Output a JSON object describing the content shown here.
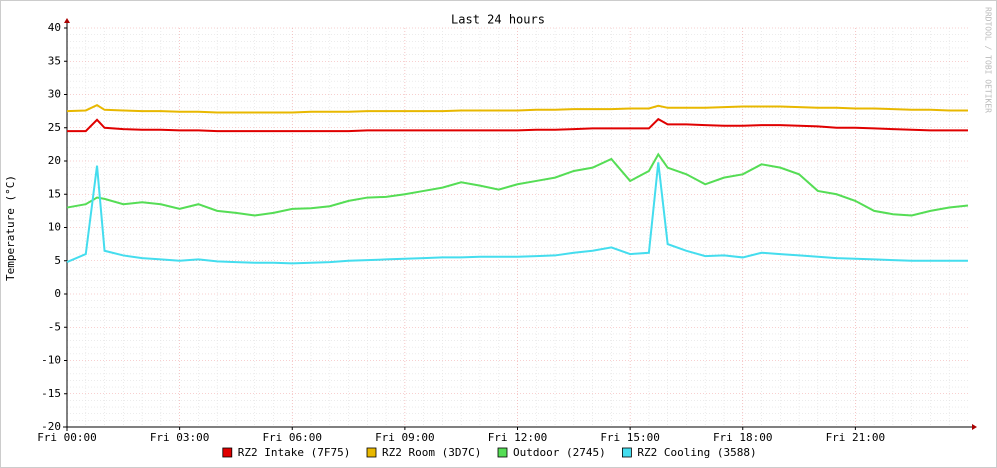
{
  "chart_data": {
    "type": "line",
    "title": "Last 24 hours",
    "y_label": "Temperature (°C)",
    "watermark": "RRDTOOL / TOBI OETIKER",
    "x": [
      0,
      0.5,
      0.8,
      1,
      1.5,
      2,
      2.5,
      3,
      3.5,
      4,
      4.5,
      5,
      5.5,
      6,
      6.5,
      7,
      7.5,
      8,
      8.5,
      9,
      9.5,
      10,
      10.5,
      11,
      11.5,
      12,
      12.5,
      13,
      13.5,
      14,
      14.5,
      15,
      15.5,
      15.75,
      16,
      16.5,
      17,
      17.5,
      18,
      18.5,
      19,
      19.5,
      20,
      20.5,
      21,
      21.5,
      22,
      22.5,
      23,
      23.5,
      24
    ],
    "xlim": [
      0,
      24
    ],
    "xticks": [
      {
        "value": 0,
        "label": "Fri 00:00"
      },
      {
        "value": 3,
        "label": "Fri 03:00"
      },
      {
        "value": 6,
        "label": "Fri 06:00"
      },
      {
        "value": 9,
        "label": "Fri 09:00"
      },
      {
        "value": 12,
        "label": "Fri 12:00"
      },
      {
        "value": 15,
        "label": "Fri 15:00"
      },
      {
        "value": 18,
        "label": "Fri 18:00"
      },
      {
        "value": 21,
        "label": "Fri 21:00"
      }
    ],
    "ylim": [
      -20,
      40
    ],
    "yticks": [
      -20,
      -15,
      -10,
      -5,
      0,
      5,
      10,
      15,
      20,
      25,
      30,
      35,
      40
    ],
    "grid": true,
    "series": [
      {
        "name": "RZ2 Intake (7F75)",
        "color": "#e00000",
        "values": [
          24.5,
          24.5,
          26.2,
          25,
          24.8,
          24.7,
          24.7,
          24.6,
          24.6,
          24.5,
          24.5,
          24.5,
          24.5,
          24.5,
          24.5,
          24.5,
          24.5,
          24.6,
          24.6,
          24.6,
          24.6,
          24.6,
          24.6,
          24.6,
          24.6,
          24.6,
          24.7,
          24.7,
          24.8,
          24.9,
          24.9,
          24.9,
          24.9,
          26.3,
          25.5,
          25.5,
          25.4,
          25.3,
          25.3,
          25.4,
          25.4,
          25.3,
          25.2,
          25,
          25,
          24.9,
          24.8,
          24.7,
          24.6,
          24.6,
          24.6
        ]
      },
      {
        "name": "RZ2 Room (3D7C)",
        "color": "#e8b800",
        "values": [
          27.5,
          27.6,
          28.4,
          27.7,
          27.6,
          27.5,
          27.5,
          27.4,
          27.4,
          27.3,
          27.3,
          27.3,
          27.3,
          27.3,
          27.4,
          27.4,
          27.4,
          27.5,
          27.5,
          27.5,
          27.5,
          27.5,
          27.6,
          27.6,
          27.6,
          27.6,
          27.7,
          27.7,
          27.8,
          27.8,
          27.8,
          27.9,
          27.9,
          28.3,
          28,
          28,
          28,
          28.1,
          28.2,
          28.2,
          28.2,
          28.1,
          28,
          28,
          27.9,
          27.9,
          27.8,
          27.7,
          27.7,
          27.6,
          27.6
        ]
      },
      {
        "name": "Outdoor (2745)",
        "color": "#55dd55",
        "values": [
          13,
          13.5,
          14.5,
          14.3,
          13.5,
          13.8,
          13.5,
          12.8,
          13.5,
          12.5,
          12.2,
          11.8,
          12.2,
          12.8,
          12.9,
          13.2,
          14,
          14.5,
          14.6,
          15,
          15.5,
          16,
          16.8,
          16.3,
          15.7,
          16.5,
          17,
          17.5,
          18.5,
          19,
          20.3,
          17,
          18.5,
          21,
          19,
          18,
          16.5,
          17.5,
          18,
          19.5,
          19,
          18,
          15.5,
          15,
          14,
          12.5,
          12,
          11.8,
          12.5,
          13,
          13.3
        ]
      },
      {
        "name": "RZ2 Cooling (3588)",
        "color": "#44ddee",
        "values": [
          4.8,
          6,
          19.3,
          6.5,
          5.8,
          5.4,
          5.2,
          5,
          5.2,
          4.9,
          4.8,
          4.7,
          4.7,
          4.6,
          4.7,
          4.8,
          5,
          5.1,
          5.2,
          5.3,
          5.4,
          5.5,
          5.5,
          5.6,
          5.6,
          5.6,
          5.7,
          5.8,
          6.2,
          6.5,
          7,
          6,
          6.2,
          19.8,
          7.5,
          6.5,
          5.7,
          5.8,
          5.5,
          6.2,
          6,
          5.8,
          5.6,
          5.4,
          5.3,
          5.2,
          5.1,
          5,
          5,
          5,
          5
        ]
      }
    ]
  }
}
